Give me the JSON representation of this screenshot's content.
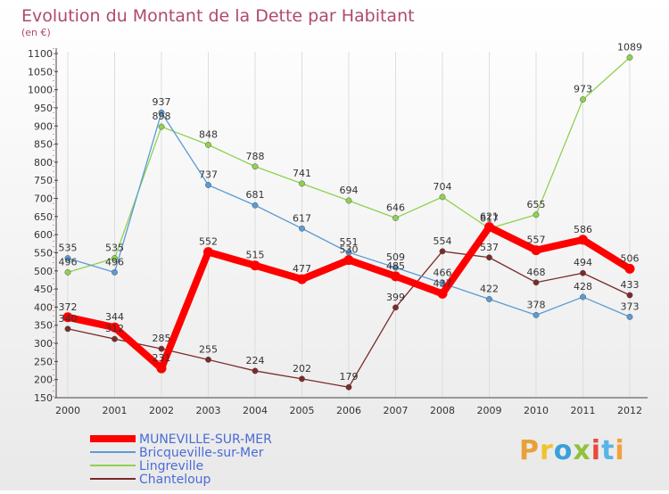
{
  "chart_data": {
    "type": "line",
    "title": "Evolution du Montant de la Dette par Habitant",
    "subtitle": "(en €)",
    "ylim": [
      150,
      1100
    ],
    "y_ticks": [
      150,
      200,
      250,
      300,
      350,
      400,
      450,
      500,
      550,
      600,
      650,
      700,
      750,
      800,
      850,
      900,
      950,
      1000,
      1050,
      1100
    ],
    "x": [
      "2000",
      "2001",
      "2002",
      "2003",
      "2004",
      "2005",
      "2006",
      "2007",
      "2008",
      "2009",
      "2010",
      "2011",
      "2012"
    ],
    "grid": "vertical",
    "legend_placement": "bottom-left",
    "series": [
      {
        "name": "MUNEVILLE-SUR-MER",
        "color": "#ff0000",
        "values": [
          372,
          344,
          231,
          552,
          515,
          477,
          530,
          485,
          437,
          621,
          557,
          586,
          506
        ]
      },
      {
        "name": "Bricqueville-sur-Mer",
        "color": "#5b9bd5",
        "values": [
          535,
          496,
          937,
          737,
          681,
          617,
          551,
          509,
          466,
          422,
          378,
          428,
          373
        ]
      },
      {
        "name": "Lingreville",
        "color": "#8fd14f",
        "values": [
          496,
          535,
          898,
          848,
          788,
          741,
          694,
          646,
          704,
          617,
          655,
          973,
          1089
        ]
      },
      {
        "name": "Chanteloup",
        "color": "#7b2a2a",
        "values": [
          340,
          312,
          285,
          255,
          224,
          202,
          179,
          399,
          554,
          537,
          468,
          494,
          433
        ]
      }
    ]
  },
  "branding": {
    "letters": [
      "P",
      "r",
      "o",
      "x",
      "i",
      "t",
      "i"
    ]
  },
  "colors": {
    "brand_letters": [
      "#e8a13a",
      "#f2c12e",
      "#3aa0d8",
      "#8fc23d",
      "#e64a3c",
      "#5ab4e5",
      "#f2a23a"
    ]
  }
}
